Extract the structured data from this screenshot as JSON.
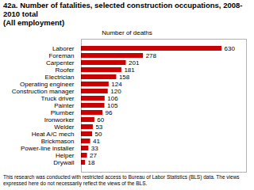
{
  "chart_data": {
    "type": "bar",
    "orientation": "horizontal",
    "title": "42a. Number of fatalities, selected construction occupations, 2008-2010 total",
    "subtitle": "(All employment)",
    "xlabel": "Number of deaths",
    "caption": "This research was conducted with restricted access to Bureau of Labor Statistics (BLS) data.  The views expressed here do not necessarily reflect the views of the BLS.",
    "categories": [
      "Drywall",
      "Helper",
      "Power-line installer",
      "Brickmason",
      "Heat A/C mech",
      "Welder",
      "Ironworker",
      "Plumber",
      "Painter",
      "Truck driver",
      "Construction manager",
      "Operating engineer",
      "Electrician",
      "Roofer",
      "Carpenter",
      "Foreman",
      "Laborer"
    ],
    "values": [
      18,
      27,
      33,
      41,
      50,
      53,
      60,
      96,
      105,
      106,
      120,
      124,
      158,
      181,
      201,
      278,
      630
    ],
    "color": "#cc0000",
    "xlim": [
      0,
      740
    ],
    "grid": false,
    "data_labels": true,
    "tick_labels": "y"
  }
}
